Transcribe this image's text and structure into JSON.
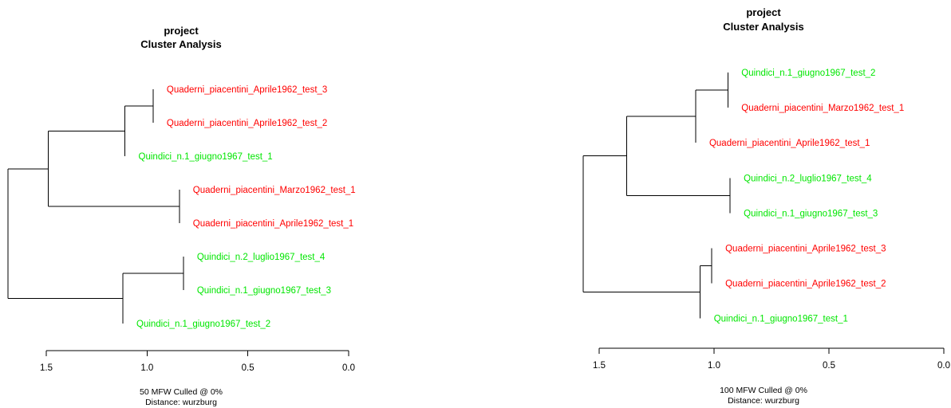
{
  "colors": {
    "red_group": "#ff0000",
    "green_group": "#00e600",
    "line": "#000000"
  },
  "chart_data": [
    {
      "type": "dendrogram",
      "title": "project",
      "subtitle": "Cluster Analysis",
      "footer": [
        "50 MFW  Culled @ 0%",
        "Distance: wurzburg"
      ],
      "xlim": [
        1.5,
        0.0
      ],
      "ticks": [
        "1.5",
        "1.0",
        "0.5",
        "0.0"
      ],
      "leaves": [
        {
          "label": "Quaderni_piacentini_Aprile1962_test_3",
          "color": "#ff0000"
        },
        {
          "label": "Quaderni_piacentini_Aprile1962_test_2",
          "color": "#ff0000"
        },
        {
          "label": "Quindici_n.1_giugno1967_test_1",
          "color": "#00e600"
        },
        {
          "label": "Quaderni_piacentini_Marzo1962_test_1",
          "color": "#ff0000"
        },
        {
          "label": "Quaderni_piacentini_Aprile1962_test_1",
          "color": "#ff0000"
        },
        {
          "label": "Quindici_n.2_luglio1967_test_4",
          "color": "#00e600"
        },
        {
          "label": "Quindici_n.1_giugno1967_test_3",
          "color": "#00e600"
        },
        {
          "label": "Quindici_n.1_giugno1967_test_2",
          "color": "#00e600"
        }
      ],
      "merges": [
        {
          "left": "L0",
          "right": "L1",
          "height": 0.97
        },
        {
          "left": "L3",
          "right": "L4",
          "height": 0.84
        },
        {
          "left": "L5",
          "right": "L6",
          "height": 0.82
        },
        {
          "left": "M0",
          "right": "L2",
          "height": 1.11
        },
        {
          "left": "M2",
          "right": "L7",
          "height": 1.12
        },
        {
          "left": "M3",
          "right": "M1",
          "height": 1.49
        },
        {
          "left": "M5",
          "right": "M4",
          "height": 1.69
        }
      ]
    },
    {
      "type": "dendrogram",
      "title": "project",
      "subtitle": "Cluster Analysis",
      "footer": [
        "100 MFW  Culled @ 0%",
        "Distance: wurzburg"
      ],
      "xlim": [
        1.5,
        0.0
      ],
      "ticks": [
        "1.5",
        "1.0",
        "0.5",
        "0.0"
      ],
      "leaves": [
        {
          "label": "Quindici_n.1_giugno1967_test_2",
          "color": "#00e600"
        },
        {
          "label": "Quaderni_piacentini_Marzo1962_test_1",
          "color": "#ff0000"
        },
        {
          "label": "Quaderni_piacentini_Aprile1962_test_1",
          "color": "#ff0000"
        },
        {
          "label": "Quindici_n.2_luglio1967_test_4",
          "color": "#00e600"
        },
        {
          "label": "Quindici_n.1_giugno1967_test_3",
          "color": "#00e600"
        },
        {
          "label": "Quaderni_piacentini_Aprile1962_test_3",
          "color": "#ff0000"
        },
        {
          "label": "Quaderni_piacentini_Aprile1962_test_2",
          "color": "#ff0000"
        },
        {
          "label": "Quindici_n.1_giugno1967_test_1",
          "color": "#00e600"
        }
      ],
      "merges": [
        {
          "left": "L0",
          "right": "L1",
          "height": 0.94
        },
        {
          "left": "L3",
          "right": "L4",
          "height": 0.93
        },
        {
          "left": "L5",
          "right": "L6",
          "height": 1.01
        },
        {
          "left": "M0",
          "right": "L2",
          "height": 1.08
        },
        {
          "left": "M2",
          "right": "L7",
          "height": 1.06
        },
        {
          "left": "M3",
          "right": "M1",
          "height": 1.38
        },
        {
          "left": "M4",
          "right": "M5",
          "height": 1.57
        }
      ]
    }
  ]
}
